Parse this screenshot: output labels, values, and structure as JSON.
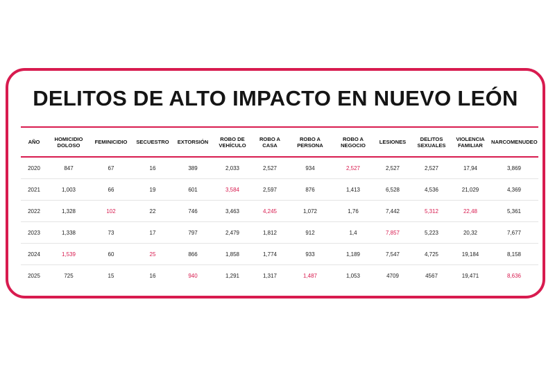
{
  "title": "DELITOS DE ALTO IMPACTO EN NUEVO LEÓN",
  "accent_color": "#d81b4f",
  "headers": [
    "AÑO",
    "HOMICIDIO DOLOSO",
    "FEMINICIDIO",
    "SECUESTRO",
    "EXTORSIÓN",
    "ROBO DE VEHÍCULO",
    "ROBO A CASA",
    "ROBO A PERSONA",
    "ROBO A NEGOCIO",
    "LESIONES",
    "DELITOS SEXUALES",
    "VIOLENCIA FAMILIAR",
    "NARCOMENUDEO"
  ],
  "rows": [
    [
      "2020",
      "847",
      "67",
      "16",
      "389",
      "2,033",
      "2,527",
      "934",
      "2,527",
      "2,527",
      "2,527",
      "17,94",
      "3,869"
    ],
    [
      "2021",
      "1,003",
      "66",
      "19",
      "601",
      "3,584",
      "2,597",
      "876",
      "1,413",
      "6,528",
      "4,536",
      "21,029",
      "4,369"
    ],
    [
      "2022",
      "1,328",
      "102",
      "22",
      "746",
      "3,463",
      "4,245",
      "1,072",
      "1,76",
      "7,442",
      "5,312",
      "22,48",
      "5,361"
    ],
    [
      "2023",
      "1,338",
      "73",
      "17",
      "797",
      "2,479",
      "1,812",
      "912",
      "1,4",
      "7,857",
      "5,223",
      "20,32",
      "7,677"
    ],
    [
      "2024",
      "1,539",
      "60",
      "25",
      "866",
      "1,858",
      "1,774",
      "933",
      "1,189",
      "7,547",
      "4,725",
      "19,184",
      "8,158"
    ],
    [
      "2025",
      "725",
      "15",
      "16",
      "940",
      "1,291",
      "1,317",
      "1,487",
      "1,053",
      "4709",
      "4567",
      "19,471",
      "8,636"
    ]
  ],
  "highlighted_cells": [
    [
      0,
      8
    ],
    [
      1,
      5
    ],
    [
      2,
      2
    ],
    [
      2,
      6
    ],
    [
      2,
      10
    ],
    [
      2,
      11
    ],
    [
      3,
      9
    ],
    [
      4,
      1
    ],
    [
      4,
      3
    ],
    [
      5,
      4
    ],
    [
      5,
      7
    ],
    [
      5,
      12
    ]
  ]
}
